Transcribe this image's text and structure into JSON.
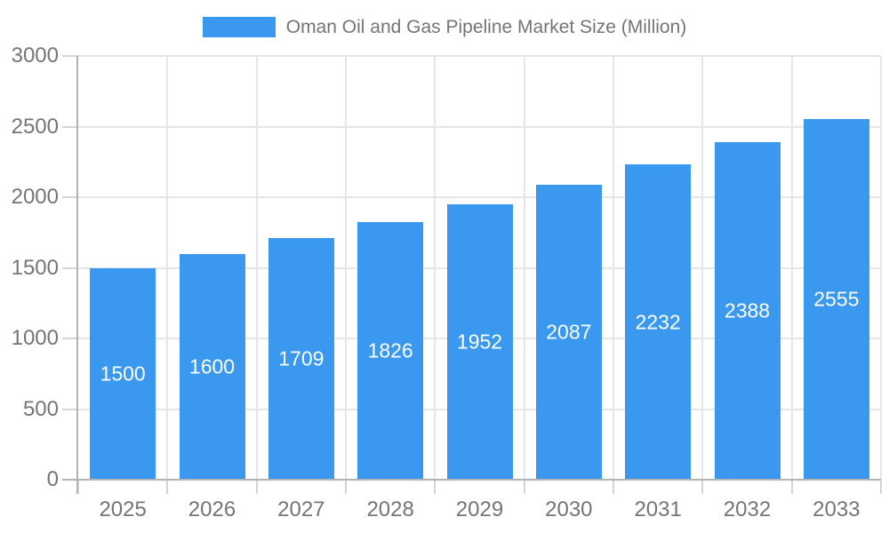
{
  "legend": {
    "label": "Oman Oil and Gas Pipeline Market Size (Million)"
  },
  "chart_data": {
    "type": "bar",
    "title": "Oman Oil and Gas Pipeline Market Size (Million)",
    "categories": [
      "2025",
      "2026",
      "2027",
      "2028",
      "2029",
      "2030",
      "2031",
      "2032",
      "2033"
    ],
    "values": [
      1500,
      1600,
      1709,
      1826,
      1952,
      2087,
      2232,
      2388,
      2555
    ],
    "xlabel": "",
    "ylabel": "",
    "ylim": [
      0,
      3000
    ],
    "yticks": [
      0,
      500,
      1000,
      1500,
      2000,
      2500,
      3000
    ],
    "grid": true,
    "legend_position": "top",
    "bar_labels_inside": true,
    "colors": {
      "bar": "#3A99EE",
      "grid": "#E6E6E6",
      "axis": "#B3B3B3",
      "text": "#757575",
      "bar_label": "#FFFFFF",
      "background": "#FFFFFF"
    }
  }
}
